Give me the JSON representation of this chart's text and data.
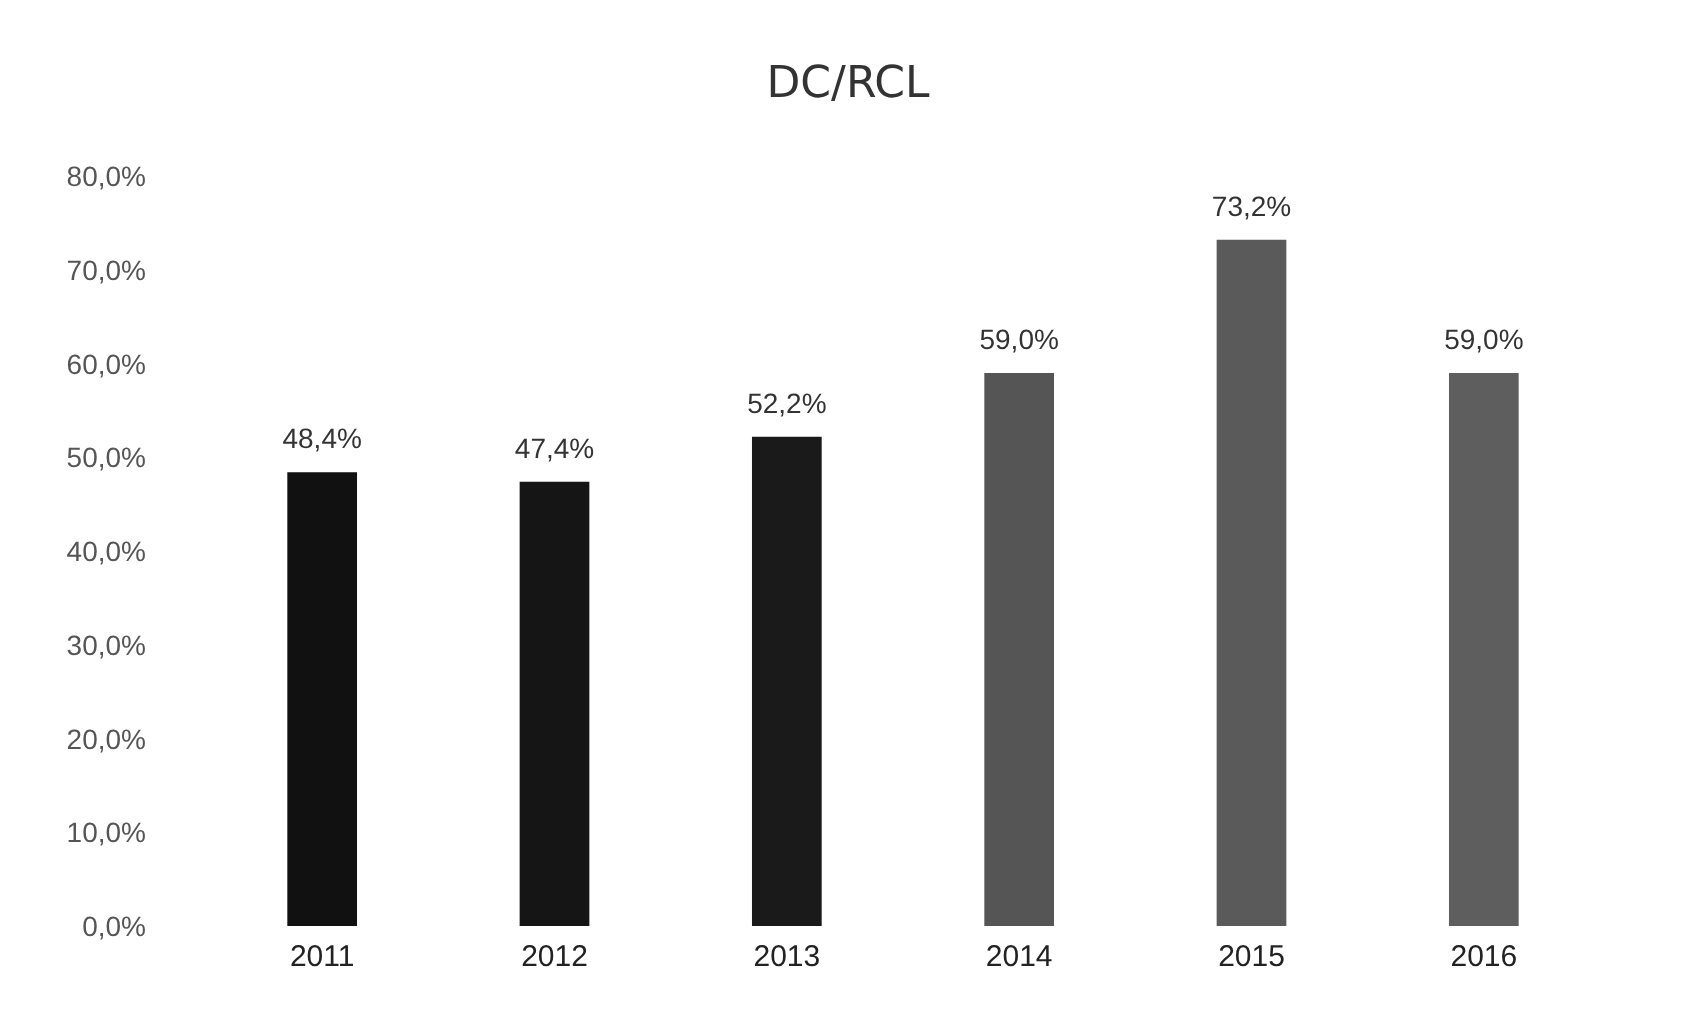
{
  "chart_data": {
    "type": "bar",
    "title": "DC/RCL",
    "categories": [
      "2011",
      "2012",
      "2013",
      "2014",
      "2015",
      "2016"
    ],
    "values": [
      48.4,
      47.4,
      52.2,
      59.0,
      73.2,
      59.0
    ],
    "value_labels": [
      "48,4%",
      "47,4%",
      "52,2%",
      "59,0%",
      "73,2%",
      "59,0%"
    ],
    "colors": [
      "#111111",
      "#151515",
      "#1a1a1a",
      "#555555",
      "#5a5a5a",
      "#5e5e5e"
    ],
    "ylim": [
      0,
      80
    ],
    "yticks": [
      {
        "value": 0,
        "label": "0,0%"
      },
      {
        "value": 10,
        "label": "10,0%"
      },
      {
        "value": 20,
        "label": "20,0%"
      },
      {
        "value": 30,
        "label": "30,0%"
      },
      {
        "value": 40,
        "label": "40,0%"
      },
      {
        "value": 50,
        "label": "50,0%"
      },
      {
        "value": 60,
        "label": "60,0%"
      },
      {
        "value": 70,
        "label": "70,0%"
      },
      {
        "value": 80,
        "label": "80,0%"
      }
    ],
    "grid": false
  }
}
